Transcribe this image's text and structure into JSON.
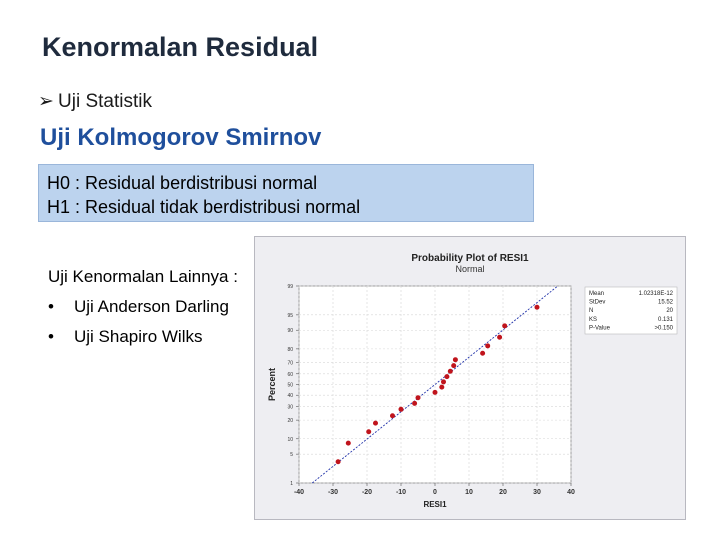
{
  "slide": {
    "title": "Kenormalan Residual",
    "bullet": "Uji Statistik",
    "subtitle": "Uji Kolmogorov Smirnov",
    "h0": "H0 : Residual berdistribusi normal",
    "h1": "H1 : Residual tidak berdistribusi normal",
    "other_heading": "Uji Kenormalan Lainnya :",
    "other_items": [
      "Uji Anderson Darling",
      "Uji Shapiro Wilks"
    ]
  },
  "chart_data": {
    "type": "scatter",
    "title": "Probability Plot of RESI1",
    "subtitle": "Normal",
    "xlabel": "RESI1",
    "ylabel": "Percent",
    "xlim": [
      -40,
      40
    ],
    "x_ticks": [
      -40,
      -30,
      -20,
      -10,
      0,
      10,
      20,
      30,
      40
    ],
    "y_ticks": [
      1,
      5,
      10,
      20,
      30,
      40,
      50,
      60,
      70,
      80,
      90,
      95,
      99
    ],
    "scale": "normal probability",
    "fit_line": {
      "mean": 0,
      "stdev": 15.52
    },
    "points": [
      {
        "x": -28.5,
        "y": 3.4
      },
      {
        "x": -25.5,
        "y": 8.3
      },
      {
        "x": -19.5,
        "y": 13.2
      },
      {
        "x": -17.5,
        "y": 18.1
      },
      {
        "x": -12.5,
        "y": 23.0
      },
      {
        "x": -10.0,
        "y": 27.9
      },
      {
        "x": -6.0,
        "y": 32.8
      },
      {
        "x": -5.0,
        "y": 37.7
      },
      {
        "x": 0.0,
        "y": 42.6
      },
      {
        "x": 2.0,
        "y": 47.5
      },
      {
        "x": 2.5,
        "y": 52.5
      },
      {
        "x": 3.5,
        "y": 57.4
      },
      {
        "x": 4.5,
        "y": 62.3
      },
      {
        "x": 5.5,
        "y": 67.2
      },
      {
        "x": 6.0,
        "y": 72.1
      },
      {
        "x": 14.0,
        "y": 77.0
      },
      {
        "x": 15.5,
        "y": 81.9
      },
      {
        "x": 19.0,
        "y": 86.8
      },
      {
        "x": 20.5,
        "y": 91.7
      },
      {
        "x": 30.0,
        "y": 96.6
      }
    ],
    "stats": [
      {
        "label": "Mean",
        "value": "1.02318E-12"
      },
      {
        "label": "StDev",
        "value": "15.52"
      },
      {
        "label": "N",
        "value": "20"
      },
      {
        "label": "KS",
        "value": "0.131"
      },
      {
        "label": "P-Value",
        "value": ">0.150"
      }
    ],
    "colors": {
      "points": "#c0141c",
      "line": "#2233aa",
      "background": "#eeeef2"
    }
  }
}
